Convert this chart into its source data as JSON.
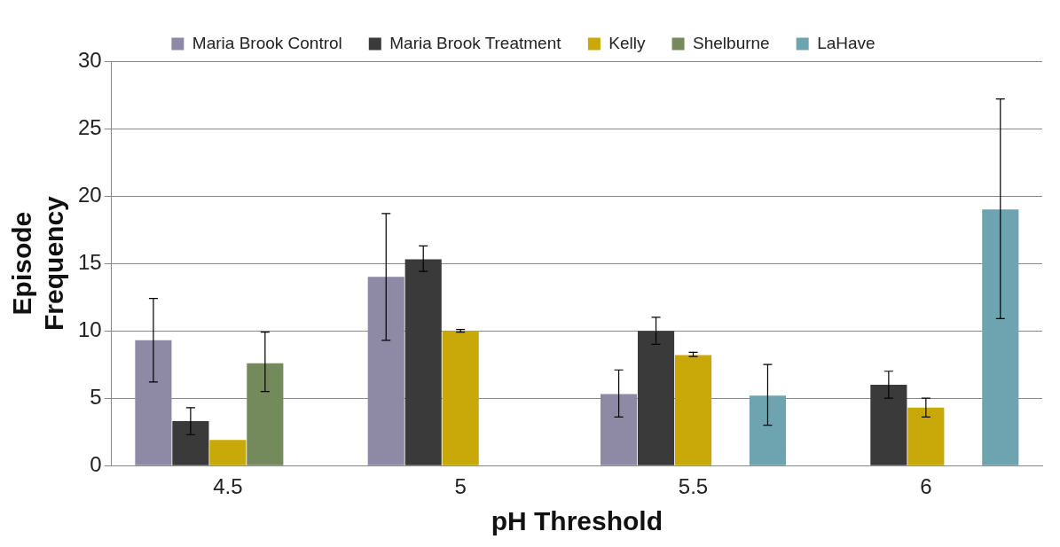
{
  "chart_data": {
    "type": "bar",
    "xlabel": "pH Threshold",
    "ylabel": "Episode Frequency",
    "categories": [
      "4.5",
      "5",
      "5.5",
      "6"
    ],
    "series": [
      {
        "name": "Maria Brook Control",
        "color": "#8e8aa6",
        "values": [
          9.3,
          14,
          5.3,
          null
        ],
        "errors": [
          [
            6.2,
            12.4
          ],
          [
            9.3,
            18.7
          ],
          [
            3.6,
            7.1
          ],
          null
        ]
      },
      {
        "name": "Maria Brook Treatment",
        "color": "#3a3a3a",
        "values": [
          3.3,
          15.3,
          10,
          6
        ],
        "errors": [
          [
            2.3,
            4.3
          ],
          [
            14.4,
            16.3
          ],
          [
            9,
            11
          ],
          [
            5,
            7
          ]
        ]
      },
      {
        "name": "Kelly",
        "color": "#c9a80a",
        "values": [
          1.9,
          10,
          8.2,
          4.3
        ],
        "errors": [
          null,
          [
            9.9,
            10.1
          ],
          [
            8.1,
            8.4
          ],
          [
            3.6,
            5
          ]
        ]
      },
      {
        "name": "Shelburne",
        "color": "#748a5c",
        "values": [
          7.6,
          null,
          null,
          null
        ],
        "errors": [
          [
            5.5,
            9.9
          ],
          null,
          null,
          null
        ]
      },
      {
        "name": "LaHave",
        "color": "#6ea3b0",
        "values": [
          null,
          null,
          5.2,
          19
        ],
        "errors": [
          null,
          null,
          [
            3,
            7.5
          ],
          [
            10.9,
            27.2
          ]
        ]
      }
    ],
    "ylim": [
      0,
      30
    ],
    "yticks": [
      0,
      5,
      10,
      15,
      20,
      25,
      30
    ],
    "grid": "y",
    "legend": "top"
  }
}
